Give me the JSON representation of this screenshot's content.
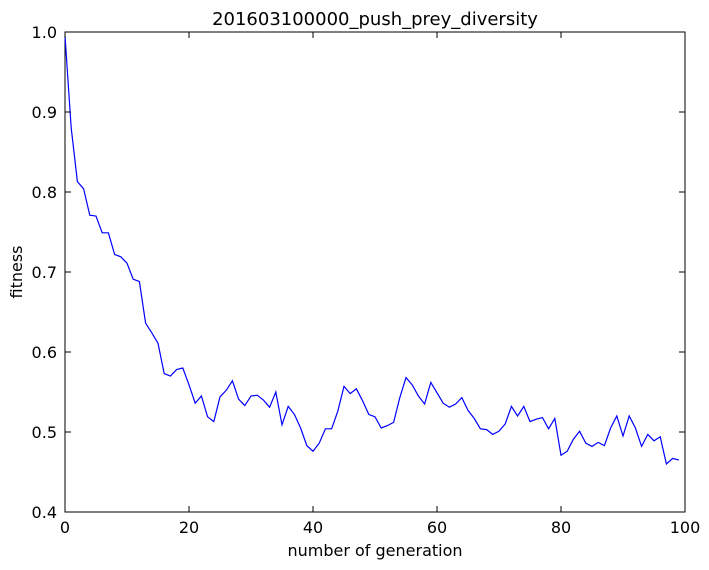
{
  "chart_data": {
    "type": "line",
    "title": "201603100000_push_prey_diversity",
    "xlabel": "number of generation",
    "ylabel": "fitness",
    "xlim": [
      0,
      100
    ],
    "ylim": [
      0.4,
      1.0
    ],
    "xticks": [
      0,
      20,
      40,
      60,
      80,
      100
    ],
    "xtick_labels": [
      "0",
      "20",
      "40",
      "60",
      "80",
      "100"
    ],
    "yticks": [
      0.4,
      0.5,
      0.6,
      0.7,
      0.8,
      0.9,
      1.0
    ],
    "ytick_labels": [
      "0.4",
      "0.5",
      "0.6",
      "0.7",
      "0.8",
      "0.9",
      "1.0"
    ],
    "grid": false,
    "line_color": "#0000ff",
    "series": [
      {
        "x": [
          0,
          1,
          2,
          3,
          4,
          5,
          6,
          7,
          8,
          9,
          10,
          11,
          12,
          13,
          14,
          15,
          16,
          17,
          18,
          19,
          20,
          21,
          22,
          23,
          24,
          25,
          26,
          27,
          28,
          29,
          30,
          31,
          32,
          33,
          34,
          35,
          36,
          37,
          38,
          39,
          40,
          41,
          42,
          43,
          44,
          45,
          46,
          47,
          48,
          49,
          50,
          51,
          52,
          53,
          54,
          55,
          56,
          57,
          58,
          59,
          60,
          61,
          62,
          63,
          64,
          65,
          66,
          67,
          68,
          69,
          70,
          71,
          72,
          73,
          74,
          75,
          76,
          77,
          78,
          79,
          80,
          81,
          82,
          83,
          84,
          85,
          86,
          87,
          88,
          89,
          90,
          91,
          92,
          93,
          94,
          95,
          96,
          97,
          98,
          99
        ],
        "y": [
          0.995,
          0.88,
          0.813,
          0.804,
          0.771,
          0.77,
          0.749,
          0.749,
          0.722,
          0.719,
          0.711,
          0.691,
          0.688,
          0.636,
          0.624,
          0.611,
          0.573,
          0.57,
          0.578,
          0.58,
          0.559,
          0.536,
          0.545,
          0.519,
          0.513,
          0.544,
          0.552,
          0.564,
          0.541,
          0.533,
          0.545,
          0.546,
          0.54,
          0.531,
          0.55,
          0.509,
          0.532,
          0.522,
          0.505,
          0.483,
          0.476,
          0.486,
          0.504,
          0.504,
          0.526,
          0.557,
          0.548,
          0.554,
          0.539,
          0.522,
          0.519,
          0.505,
          0.508,
          0.512,
          0.543,
          0.568,
          0.559,
          0.545,
          0.535,
          0.562,
          0.549,
          0.536,
          0.531,
          0.535,
          0.543,
          0.527,
          0.517,
          0.504,
          0.503,
          0.497,
          0.501,
          0.51,
          0.532,
          0.52,
          0.532,
          0.513,
          0.516,
          0.518,
          0.504,
          0.517,
          0.471,
          0.476,
          0.491,
          0.501,
          0.486,
          0.482,
          0.487,
          0.483,
          0.505,
          0.52,
          0.495,
          0.52,
          0.505,
          0.482,
          0.497,
          0.489,
          0.494,
          0.46,
          0.467,
          0.465
        ]
      }
    ]
  }
}
